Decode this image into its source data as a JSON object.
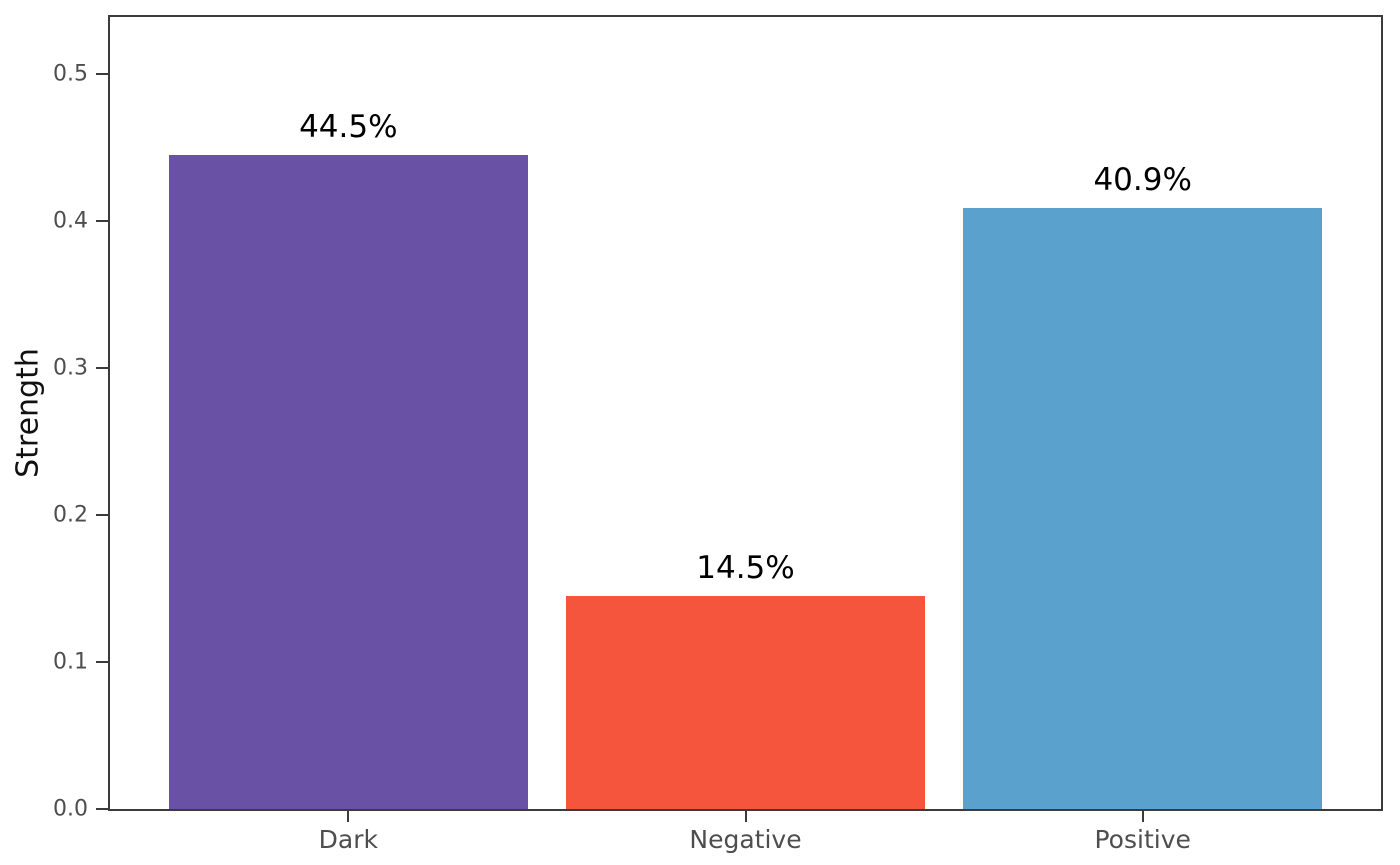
{
  "chart_data": {
    "type": "bar",
    "title": "",
    "xlabel": "",
    "ylabel": "Strength",
    "categories": [
      "Dark",
      "Negative",
      "Positive"
    ],
    "values": [
      0.445,
      0.145,
      0.409
    ],
    "bar_labels": [
      "44.5%",
      "14.5%",
      "40.9%"
    ],
    "bar_colors": [
      "#6951a6",
      "#f4553c",
      "#5aa1ce"
    ],
    "yticks": [
      0.0,
      0.1,
      0.2,
      0.3,
      0.4,
      0.5
    ],
    "ytick_labels": [
      "0.0",
      "0.1",
      "0.2",
      "0.3",
      "0.4",
      "0.5"
    ],
    "ylim": [
      0,
      0.539
    ],
    "x_range_units": [
      -0.6,
      2.6
    ],
    "bar_width_units": 0.905,
    "grid": false,
    "legend": "none"
  },
  "style": {
    "background": "#ffffff",
    "spine_color": "#3b3b3b",
    "tick_label_color": "#4e4e4e",
    "axis_label_color": "#111111",
    "value_label_color": "#000000"
  }
}
